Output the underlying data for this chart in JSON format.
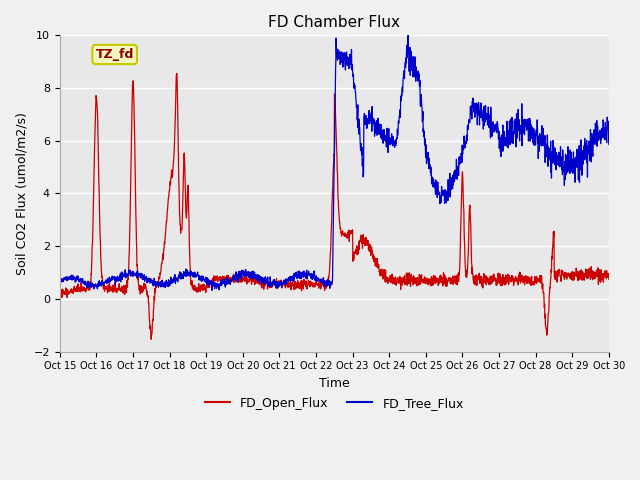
{
  "title": "FD Chamber Flux",
  "ylabel": "Soil CO2 Flux (umol/m2/s)",
  "xlabel": "Time",
  "annotation": "TZ_fd",
  "ylim": [
    -2,
    10
  ],
  "yticks": [
    -2,
    0,
    2,
    4,
    6,
    8,
    10
  ],
  "xtick_labels": [
    "Oct 15",
    "Oct 16",
    "Oct 17",
    "Oct 18",
    "Oct 19",
    "Oct 20",
    "Oct 21",
    "Oct 22",
    "Oct 23",
    "Oct 24",
    "Oct 25",
    "Oct 26",
    "Oct 27",
    "Oct 28",
    "Oct 29",
    "Oct 30"
  ],
  "open_color": "#cc0000",
  "tree_color": "#0000cc",
  "bg_color": "#e8e8e8",
  "plot_bg": "#f0f0f0",
  "legend_labels": [
    "FD_Open_Flux",
    "FD_Tree_Flux"
  ],
  "title_fontsize": 11,
  "axis_fontsize": 9,
  "tick_fontsize": 8
}
